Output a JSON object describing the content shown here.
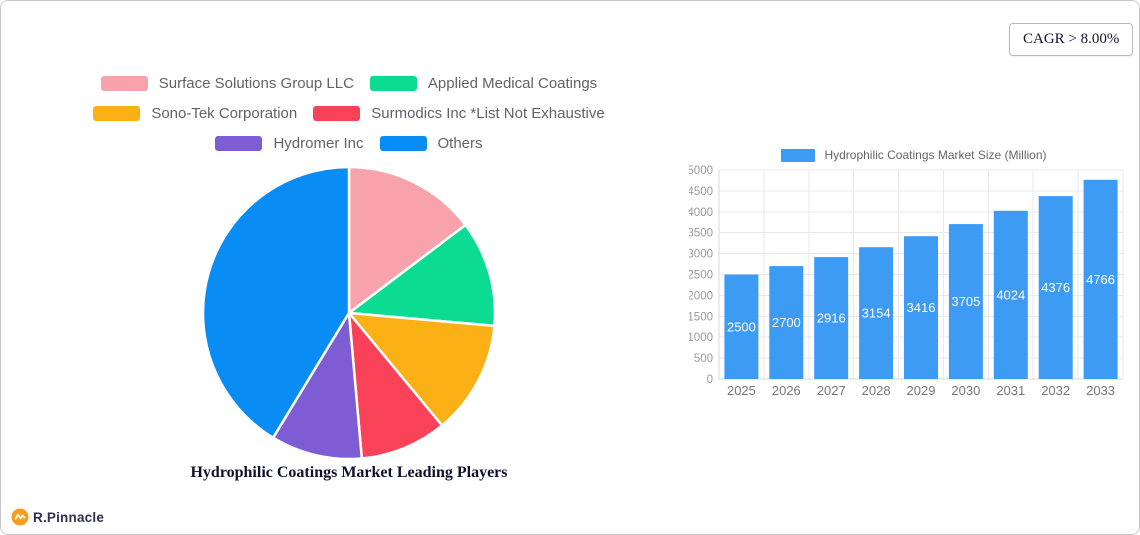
{
  "cagr_badge": "CAGR > 8.00%",
  "logo": {
    "text": "R.Pinnacle",
    "mark_color": "#F59E20"
  },
  "chart_data": [
    {
      "type": "pie",
      "title": "Hydrophilic Coatings Market Leading Players",
      "start_angle": "top",
      "direction": "clockwise",
      "legend_position": "top",
      "legend_rows": [
        [
          0,
          1
        ],
        [
          2,
          3
        ],
        [
          4,
          5
        ]
      ],
      "slices": [
        {
          "label": "Surface Solutions Group LLC",
          "percent": 14.7,
          "color": "#F8A3AC"
        },
        {
          "label": "Applied Medical Coatings",
          "percent": 11.7,
          "color": "#0CDC92"
        },
        {
          "label": "Sono-Tek Corporation",
          "percent": 12.6,
          "color": "#FBB116"
        },
        {
          "label": "Surmodics Inc *List Not Exhaustive",
          "percent": 9.6,
          "color": "#F94158"
        },
        {
          "label": "Hydromer Inc",
          "percent": 10.1,
          "color": "#7E5CD3"
        },
        {
          "label": "Others",
          "percent": 41.3,
          "color": "#0A8CF5"
        }
      ]
    },
    {
      "type": "bar",
      "legend_label": "Hydrophilic Coatings Market Size (Million)",
      "categories": [
        "2025",
        "2026",
        "2027",
        "2028",
        "2029",
        "2030",
        "2031",
        "2032",
        "2033"
      ],
      "values": [
        2500,
        2700,
        2916,
        3154,
        3416,
        3705,
        4024,
        4376,
        4766
      ],
      "bar_color": "#3D9BF3",
      "value_label_color": "#FFFFFF",
      "ylim": [
        0,
        5000
      ],
      "ytick_step": 500,
      "grid": true,
      "axis_text_color": "#999999",
      "xtick_text_color": "#777777"
    }
  ]
}
